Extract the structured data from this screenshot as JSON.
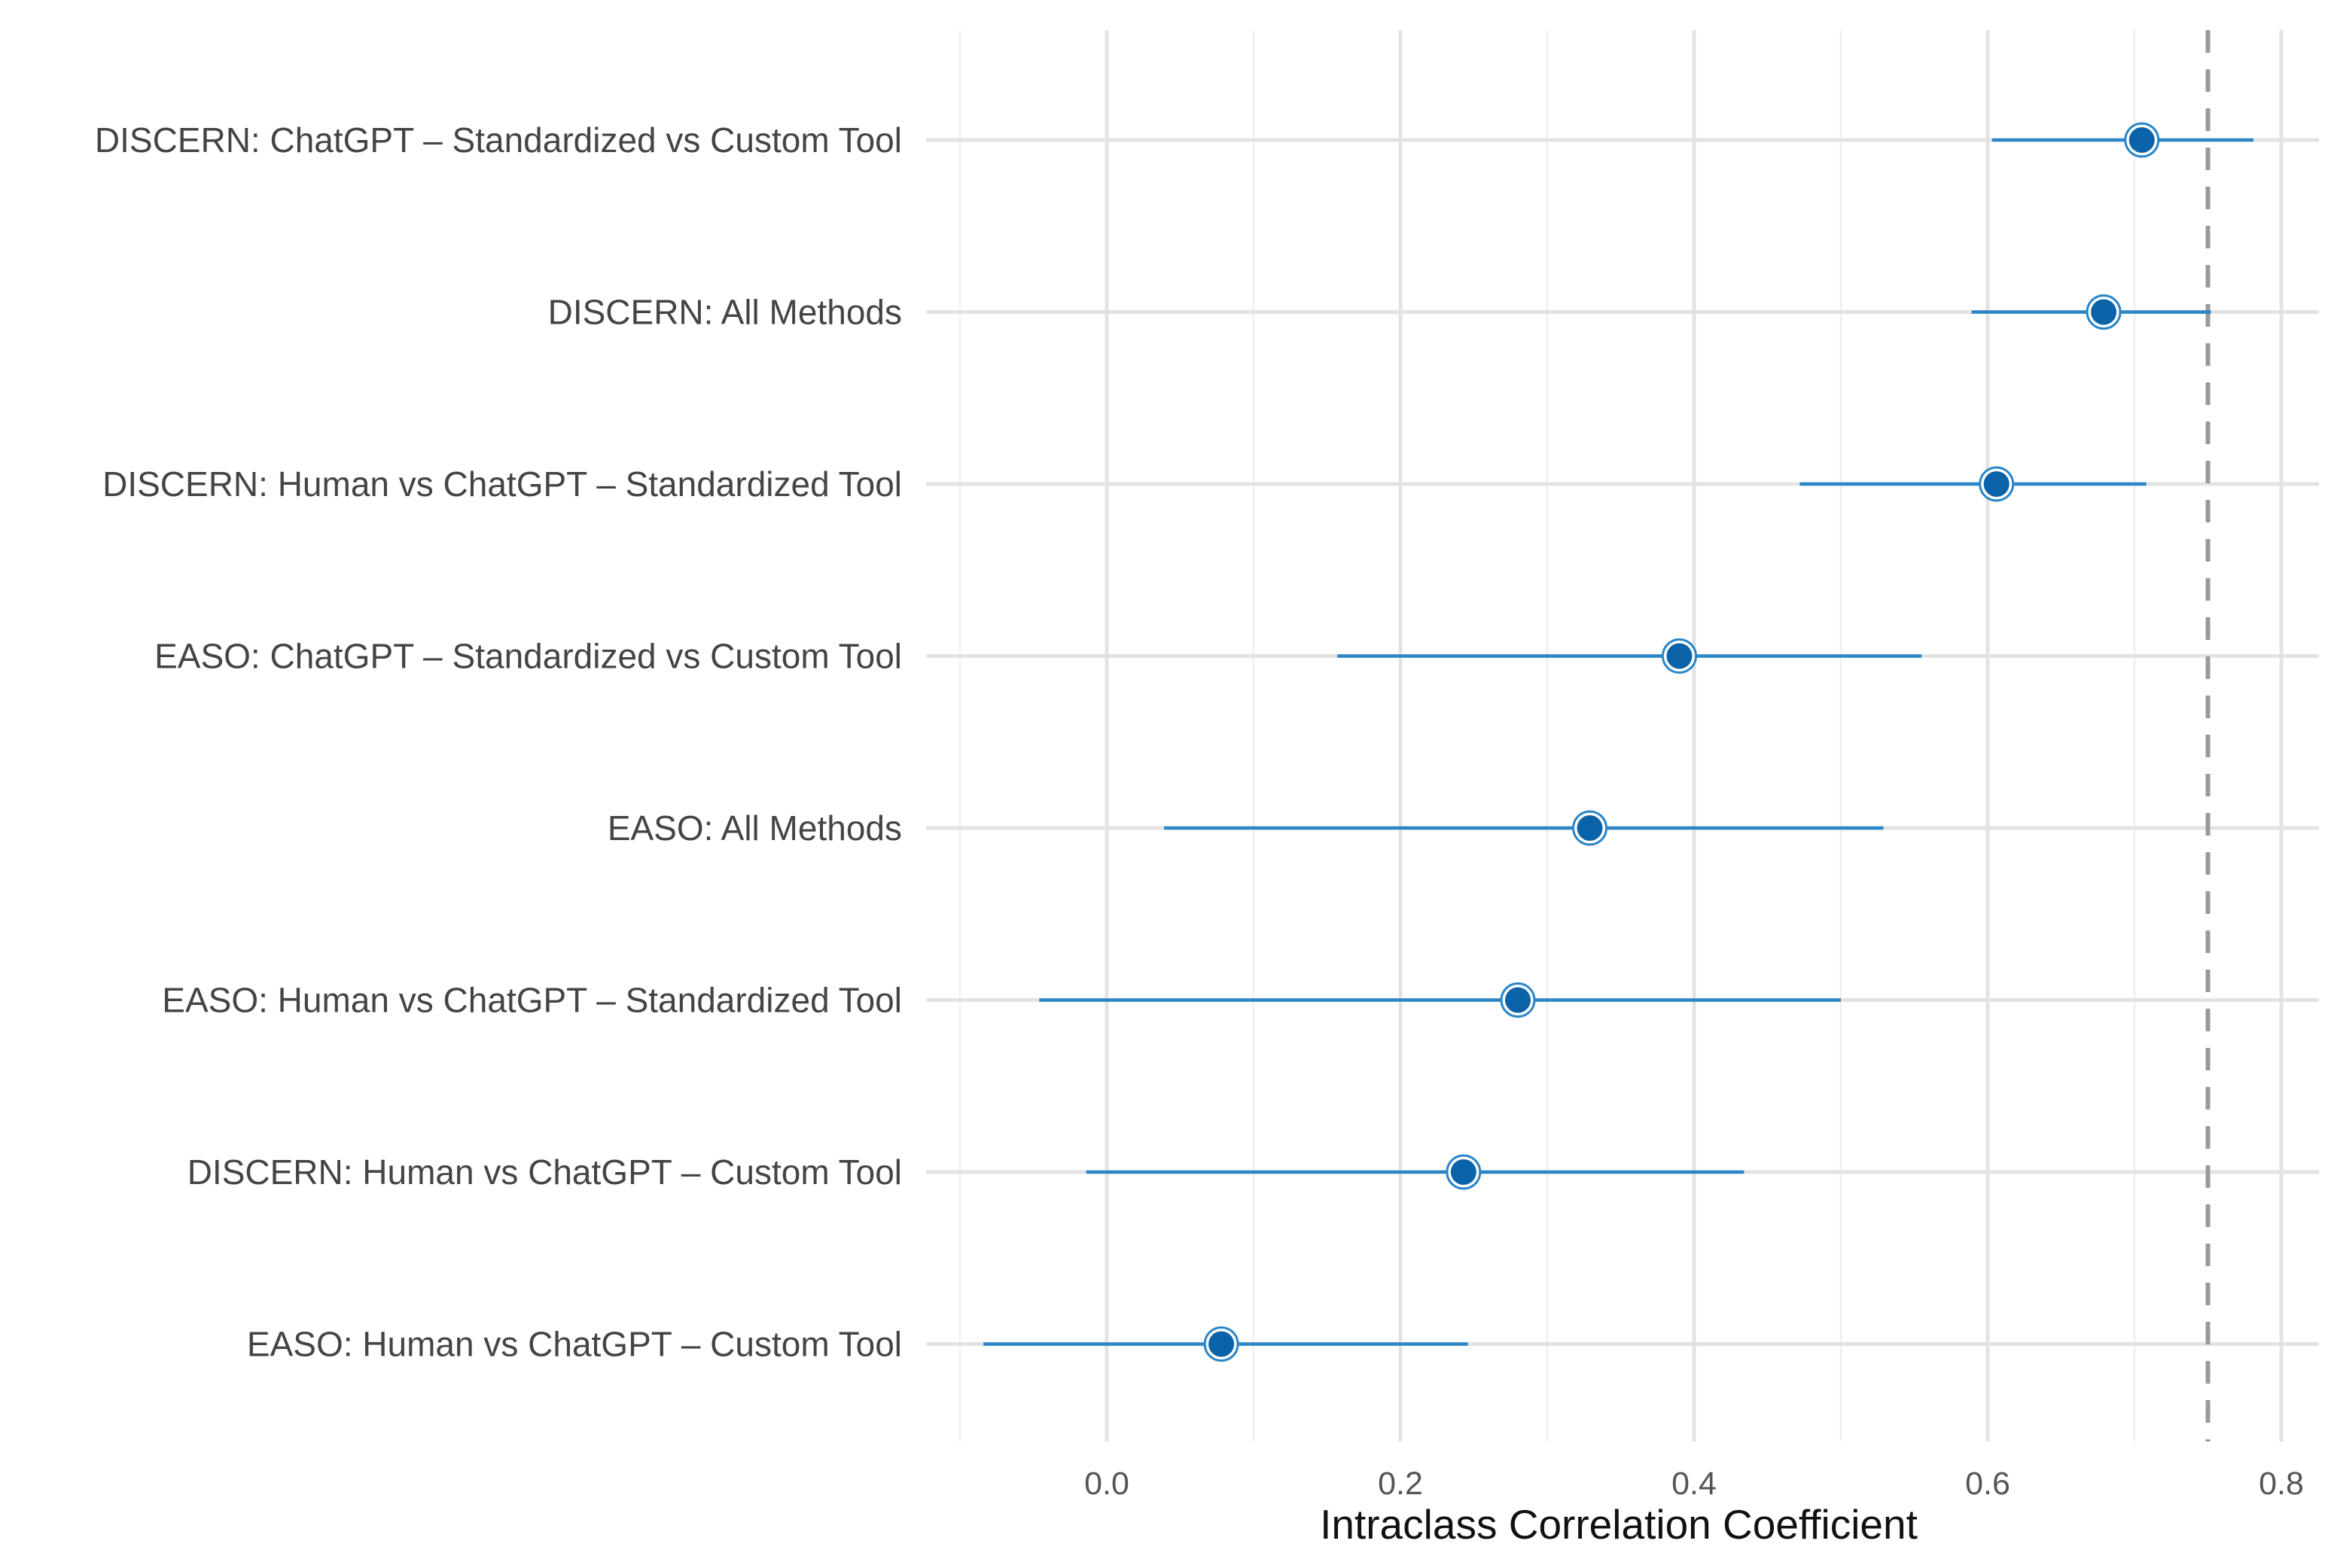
{
  "chart_data": {
    "type": "forest",
    "title": "",
    "xlabel": "Intraclass Correlation Coefficient",
    "ylabel": "",
    "xlim": [
      -0.1,
      0.82
    ],
    "xticks": [
      0.0,
      0.2,
      0.4,
      0.6,
      0.8
    ],
    "xtick_labels": [
      "0.0",
      "0.2",
      "0.4",
      "0.6",
      "0.8"
    ],
    "grid": true,
    "reference_line": {
      "x": 0.75,
      "style": "dashed",
      "color": "#999999"
    },
    "colors": {
      "interval": "#2a86c8",
      "point_fill": "#0a62a8",
      "point_ring": "#2a86c8",
      "grid_major": "#e3e3e3",
      "grid_minor": "#efefef"
    },
    "rows": [
      {
        "label": "DISCERN: ChatGPT – Standardized vs Custom Tool",
        "icc": 0.705,
        "lower": 0.603,
        "upper": 0.781
      },
      {
        "label": "DISCERN: All Methods",
        "icc": 0.679,
        "lower": 0.589,
        "upper": 0.752
      },
      {
        "label": "DISCERN: Human vs ChatGPT – Standardized Tool",
        "icc": 0.606,
        "lower": 0.472,
        "upper": 0.708
      },
      {
        "label": "EASO: ChatGPT – Standardized vs Custom Tool",
        "icc": 0.39,
        "lower": 0.157,
        "upper": 0.555
      },
      {
        "label": "EASO: All Methods",
        "icc": 0.329,
        "lower": 0.039,
        "upper": 0.529
      },
      {
        "label": "EASO: Human vs ChatGPT – Standardized Tool",
        "icc": 0.28,
        "lower": -0.046,
        "upper": 0.5
      },
      {
        "label": "DISCERN: Human vs ChatGPT – Custom Tool",
        "icc": 0.243,
        "lower": -0.014,
        "upper": 0.434
      },
      {
        "label": "EASO: Human vs ChatGPT – Custom Tool",
        "icc": 0.078,
        "lower": -0.084,
        "upper": 0.246
      }
    ]
  }
}
